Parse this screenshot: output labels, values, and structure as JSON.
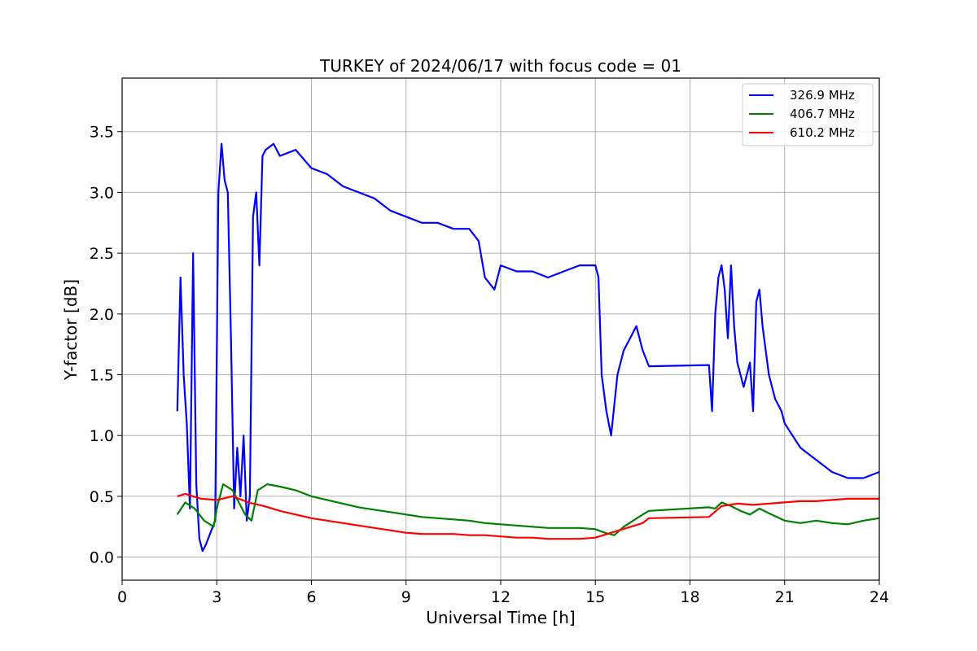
{
  "chart_data": {
    "type": "line",
    "title": "TURKEY of 2024/06/17 with focus code = 01",
    "xlabel": "Universal Time [h]",
    "ylabel": "Y-factor [dB]",
    "xlim": [
      0,
      24
    ],
    "ylim": [
      -0.19,
      3.94
    ],
    "xticks": [
      0,
      3,
      6,
      9,
      12,
      15,
      18,
      21,
      24
    ],
    "yticks": [
      0.0,
      0.5,
      1.0,
      1.5,
      2.0,
      2.5,
      3.0,
      3.5
    ],
    "grid": true,
    "legend_position": "top-right",
    "series": [
      {
        "name": "326.9 MHz",
        "color": "#0000ff",
        "x": [
          1.75,
          1.85,
          1.95,
          2.05,
          2.15,
          2.25,
          2.35,
          2.45,
          2.55,
          2.65,
          2.8,
          2.95,
          3.05,
          3.15,
          3.25,
          3.35,
          3.45,
          3.55,
          3.65,
          3.75,
          3.85,
          3.95,
          4.05,
          4.15,
          4.25,
          4.35,
          4.45,
          4.55,
          4.8,
          5.0,
          5.5,
          6.0,
          6.5,
          7.0,
          7.5,
          8.0,
          8.5,
          9.0,
          9.5,
          10.0,
          10.5,
          11.0,
          11.3,
          11.5,
          11.8,
          12.0,
          12.5,
          13.0,
          13.5,
          14.0,
          14.5,
          15.0,
          15.1,
          15.2,
          15.35,
          15.5,
          15.7,
          15.9,
          16.1,
          16.3,
          16.5,
          16.7,
          18.6,
          18.7,
          18.8,
          18.9,
          19.0,
          19.1,
          19.2,
          19.3,
          19.4,
          19.5,
          19.7,
          19.9,
          20.0,
          20.1,
          20.2,
          20.3,
          20.5,
          20.7,
          20.9,
          21.0,
          21.5,
          22.0,
          22.5,
          23.0,
          23.5,
          24.0
        ],
        "y": [
          1.2,
          2.3,
          1.5,
          1.1,
          0.4,
          2.5,
          0.6,
          0.15,
          0.05,
          0.1,
          0.2,
          0.3,
          3.0,
          3.4,
          3.1,
          3.0,
          1.8,
          0.4,
          0.9,
          0.5,
          1.0,
          0.3,
          0.5,
          2.8,
          3.0,
          2.4,
          3.3,
          3.35,
          3.4,
          3.3,
          3.35,
          3.2,
          3.15,
          3.05,
          3.0,
          2.95,
          2.85,
          2.8,
          2.75,
          2.75,
          2.7,
          2.7,
          2.6,
          2.3,
          2.2,
          2.4,
          2.35,
          2.35,
          2.3,
          2.35,
          2.4,
          2.4,
          2.3,
          1.5,
          1.2,
          1.0,
          1.5,
          1.7,
          1.8,
          1.9,
          1.7,
          1.57,
          1.58,
          1.2,
          2.0,
          2.3,
          2.4,
          2.2,
          1.8,
          2.4,
          1.9,
          1.6,
          1.4,
          1.6,
          1.2,
          2.1,
          2.2,
          1.9,
          1.5,
          1.3,
          1.2,
          1.1,
          0.9,
          0.8,
          0.7,
          0.65,
          0.65,
          0.7
        ]
      },
      {
        "name": "406.7 MHz",
        "color": "#008000",
        "x": [
          1.75,
          2.0,
          2.3,
          2.6,
          2.9,
          3.0,
          3.2,
          3.5,
          3.7,
          3.9,
          4.1,
          4.3,
          4.6,
          5.0,
          5.5,
          6.0,
          6.5,
          7.0,
          7.5,
          8.0,
          8.5,
          9.0,
          9.5,
          10.0,
          10.5,
          11.0,
          11.5,
          12.0,
          12.5,
          13.0,
          13.5,
          14.0,
          14.5,
          15.0,
          15.3,
          15.6,
          15.9,
          16.2,
          16.5,
          16.7,
          18.6,
          18.8,
          19.0,
          19.3,
          19.6,
          19.9,
          20.2,
          20.5,
          21.0,
          21.5,
          22.0,
          22.5,
          23.0,
          23.5,
          24.0
        ],
        "y": [
          0.35,
          0.45,
          0.4,
          0.3,
          0.25,
          0.4,
          0.6,
          0.55,
          0.45,
          0.35,
          0.3,
          0.55,
          0.6,
          0.58,
          0.55,
          0.5,
          0.47,
          0.44,
          0.41,
          0.39,
          0.37,
          0.35,
          0.33,
          0.32,
          0.31,
          0.3,
          0.28,
          0.27,
          0.26,
          0.25,
          0.24,
          0.24,
          0.24,
          0.23,
          0.2,
          0.18,
          0.25,
          0.3,
          0.35,
          0.38,
          0.41,
          0.4,
          0.45,
          0.42,
          0.38,
          0.35,
          0.4,
          0.36,
          0.3,
          0.28,
          0.3,
          0.28,
          0.27,
          0.3,
          0.32
        ]
      },
      {
        "name": "610.2 MHz",
        "color": "#ff0000",
        "x": [
          1.75,
          2.0,
          2.5,
          3.0,
          3.5,
          4.0,
          4.5,
          5.0,
          5.5,
          6.0,
          6.5,
          7.0,
          7.5,
          8.0,
          8.5,
          9.0,
          9.5,
          10.0,
          10.5,
          11.0,
          11.5,
          12.0,
          12.5,
          13.0,
          13.5,
          14.0,
          14.5,
          15.0,
          15.5,
          16.0,
          16.5,
          16.7,
          18.6,
          19.0,
          19.5,
          20.0,
          20.5,
          21.0,
          21.5,
          22.0,
          22.5,
          23.0,
          23.5,
          24.0
        ],
        "y": [
          0.5,
          0.52,
          0.48,
          0.47,
          0.5,
          0.45,
          0.42,
          0.38,
          0.35,
          0.32,
          0.3,
          0.28,
          0.26,
          0.24,
          0.22,
          0.2,
          0.19,
          0.19,
          0.19,
          0.18,
          0.18,
          0.17,
          0.16,
          0.16,
          0.15,
          0.15,
          0.15,
          0.16,
          0.2,
          0.24,
          0.28,
          0.32,
          0.33,
          0.42,
          0.44,
          0.43,
          0.44,
          0.45,
          0.46,
          0.46,
          0.47,
          0.48,
          0.48,
          0.48
        ]
      }
    ]
  }
}
